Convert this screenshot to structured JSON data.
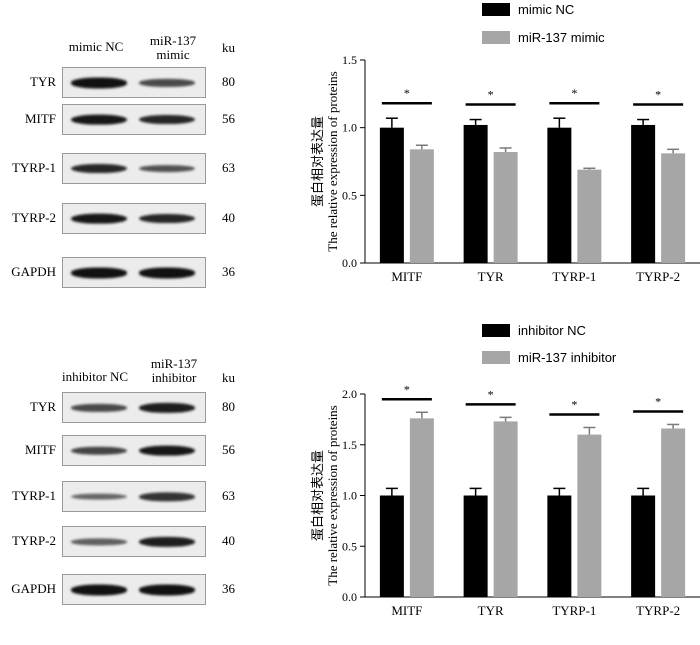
{
  "western_blots": [
    {
      "headers": [
        "mimic NC",
        "miR-137\nmimic"
      ],
      "ku_label": "ku",
      "bands": [
        {
          "protein": "TYR",
          "ku": "80",
          "intensity": [
            1.0,
            0.6
          ]
        },
        {
          "protein": "MITF",
          "ku": "56",
          "intensity": [
            0.95,
            0.85
          ]
        },
        {
          "protein": "TYRP-1",
          "ku": "63",
          "intensity": [
            0.85,
            0.55
          ]
        },
        {
          "protein": "TYRP-2",
          "ku": "40",
          "intensity": [
            0.95,
            0.85
          ]
        },
        {
          "protein": "GAPDH",
          "ku": "36",
          "intensity": [
            1.0,
            1.0
          ]
        }
      ]
    },
    {
      "headers": [
        "inhibitor NC",
        "miR-137\ninhibitor"
      ],
      "ku_label": "ku",
      "bands": [
        {
          "protein": "TYR",
          "ku": "80",
          "intensity": [
            0.6,
            0.9
          ]
        },
        {
          "protein": "MITF",
          "ku": "56",
          "intensity": [
            0.65,
            0.95
          ]
        },
        {
          "protein": "TYRP-1",
          "ku": "63",
          "intensity": [
            0.4,
            0.75
          ]
        },
        {
          "protein": "TYRP-2",
          "ku": "40",
          "intensity": [
            0.45,
            0.9
          ]
        },
        {
          "protein": "GAPDH",
          "ku": "36",
          "intensity": [
            1.0,
            1.0
          ]
        }
      ]
    }
  ],
  "chart_data": [
    {
      "type": "bar",
      "categories": [
        "MITF",
        "TYR",
        "TYRP-1",
        "TYRP-2"
      ],
      "series": [
        {
          "name": "mimic NC",
          "values": [
            1.0,
            1.02,
            1.0,
            1.02
          ],
          "errors": [
            0.07,
            0.04,
            0.07,
            0.04
          ],
          "color": "#000000"
        },
        {
          "name": "miR-137 mimic",
          "values": [
            0.84,
            0.82,
            0.69,
            0.81
          ],
          "errors": [
            0.03,
            0.03,
            0.01,
            0.03
          ],
          "color": "#a6a6a6"
        }
      ],
      "significance": [
        "*",
        "*",
        "*",
        "*"
      ],
      "ylabel": [
        "蛋白相对表达量",
        "The relative expression of proteins"
      ],
      "ylim": [
        0,
        1.5
      ],
      "yticks": [
        "0.0",
        "0.5",
        "1.0",
        "1.5"
      ],
      "legend_position": "top"
    },
    {
      "type": "bar",
      "categories": [
        "MITF",
        "TYR",
        "TYRP-1",
        "TYRP-2"
      ],
      "series": [
        {
          "name": "inhibitor NC",
          "values": [
            1.0,
            1.0,
            1.0,
            1.0
          ],
          "errors": [
            0.07,
            0.07,
            0.07,
            0.07
          ],
          "color": "#000000"
        },
        {
          "name": "miR-137 inhibitor",
          "values": [
            1.76,
            1.73,
            1.6,
            1.66
          ],
          "errors": [
            0.06,
            0.04,
            0.07,
            0.04
          ],
          "color": "#a6a6a6"
        }
      ],
      "significance": [
        "*",
        "*",
        "*",
        "*"
      ],
      "ylabel": [
        "蛋白相对表达量",
        "The relative expression of proteins"
      ],
      "ylim": [
        0,
        2.0
      ],
      "yticks": [
        "0.0",
        "0.5",
        "1.0",
        "1.5",
        "2.0"
      ],
      "legend_position": "top"
    }
  ]
}
